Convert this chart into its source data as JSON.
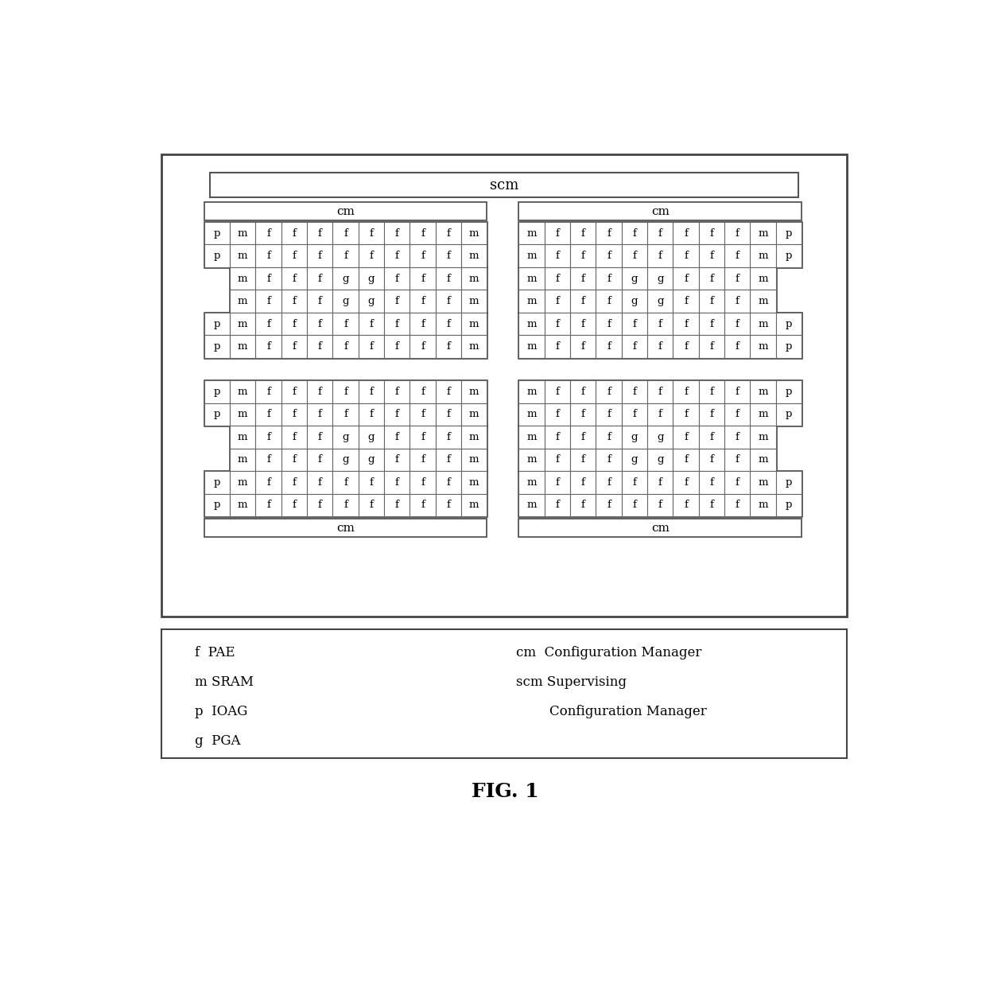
{
  "bg_color": "#ffffff",
  "fig_title": "FIG. 1",
  "left_grid": [
    [
      "p",
      "m",
      "f",
      "f",
      "f",
      "f",
      "f",
      "f",
      "f",
      "f",
      "m"
    ],
    [
      "p",
      "m",
      "f",
      "f",
      "f",
      "f",
      "f",
      "f",
      "f",
      "f",
      "m"
    ],
    [
      " ",
      "m",
      "f",
      "f",
      "f",
      "g",
      "g",
      "f",
      "f",
      "f",
      "m"
    ],
    [
      " ",
      "m",
      "f",
      "f",
      "f",
      "g",
      "g",
      "f",
      "f",
      "f",
      "m"
    ],
    [
      "p",
      "m",
      "f",
      "f",
      "f",
      "f",
      "f",
      "f",
      "f",
      "f",
      "m"
    ],
    [
      "p",
      "m",
      "f",
      "f",
      "f",
      "f",
      "f",
      "f",
      "f",
      "f",
      "m"
    ],
    [
      " ",
      " ",
      " ",
      " ",
      " ",
      " ",
      " ",
      " ",
      " ",
      " ",
      " "
    ],
    [
      "p",
      "m",
      "f",
      "f",
      "f",
      "f",
      "f",
      "f",
      "f",
      "f",
      "m"
    ],
    [
      "p",
      "m",
      "f",
      "f",
      "f",
      "f",
      "f",
      "f",
      "f",
      "f",
      "m"
    ],
    [
      " ",
      "m",
      "f",
      "f",
      "f",
      "g",
      "g",
      "f",
      "f",
      "f",
      "m"
    ],
    [
      " ",
      "m",
      "f",
      "f",
      "f",
      "g",
      "g",
      "f",
      "f",
      "f",
      "m"
    ],
    [
      "p",
      "m",
      "f",
      "f",
      "f",
      "f",
      "f",
      "f",
      "f",
      "f",
      "m"
    ],
    [
      "p",
      "m",
      "f",
      "f",
      "f",
      "f",
      "f",
      "f",
      "f",
      "f",
      "m"
    ]
  ],
  "right_grid": [
    [
      "m",
      "f",
      "f",
      "f",
      "f",
      "f",
      "f",
      "f",
      "f",
      "m",
      "p"
    ],
    [
      "m",
      "f",
      "f",
      "f",
      "f",
      "f",
      "f",
      "f",
      "f",
      "m",
      "p"
    ],
    [
      "m",
      "f",
      "f",
      "f",
      "g",
      "g",
      "f",
      "f",
      "f",
      "m",
      " "
    ],
    [
      "m",
      "f",
      "f",
      "f",
      "g",
      "g",
      "f",
      "f",
      "f",
      "m",
      " "
    ],
    [
      "m",
      "f",
      "f",
      "f",
      "f",
      "f",
      "f",
      "f",
      "f",
      "m",
      "p"
    ],
    [
      "m",
      "f",
      "f",
      "f",
      "f",
      "f",
      "f",
      "f",
      "f",
      "m",
      "p"
    ],
    [
      " ",
      " ",
      " ",
      " ",
      " ",
      " ",
      " ",
      " ",
      " ",
      " ",
      " "
    ],
    [
      "m",
      "f",
      "f",
      "f",
      "f",
      "f",
      "f",
      "f",
      "f",
      "m",
      "p"
    ],
    [
      "m",
      "f",
      "f",
      "f",
      "f",
      "f",
      "f",
      "f",
      "f",
      "m",
      "p"
    ],
    [
      "m",
      "f",
      "f",
      "f",
      "g",
      "g",
      "f",
      "f",
      "f",
      "m",
      " "
    ],
    [
      "m",
      "f",
      "f",
      "f",
      "g",
      "g",
      "f",
      "f",
      "f",
      "m",
      " "
    ],
    [
      "m",
      "f",
      "f",
      "f",
      "f",
      "f",
      "f",
      "f",
      "f",
      "m",
      "p"
    ],
    [
      "m",
      "f",
      "f",
      "f",
      "f",
      "f",
      "f",
      "f",
      "f",
      "m",
      "p"
    ]
  ],
  "legend_left": [
    "f  PAE",
    "m SRAM",
    "p  IOAG",
    "g  PGA"
  ],
  "legend_right_line1": "cm  Configuration Manager",
  "legend_right_line2": "scm Supervising",
  "legend_right_line3": "        Configuration Manager"
}
